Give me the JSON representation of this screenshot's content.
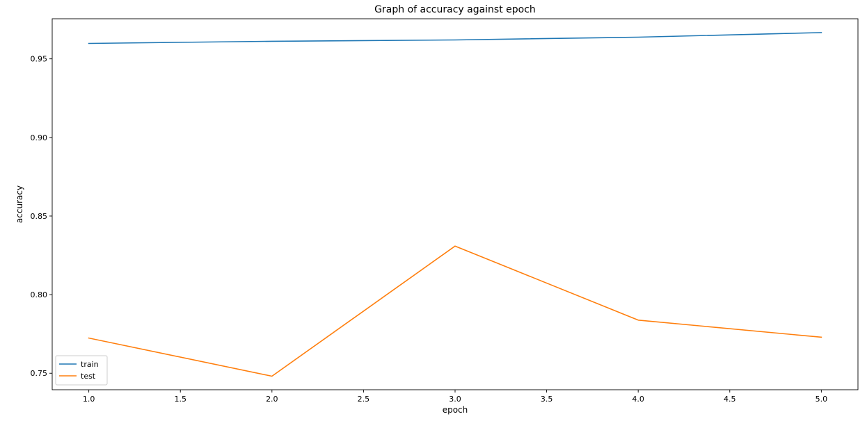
{
  "chart_data": {
    "type": "line",
    "title": "Graph of accuracy against epoch",
    "xlabel": "epoch",
    "ylabel": "accuracy",
    "xlim": [
      0.8,
      5.2
    ],
    "ylim": [
      0.7395,
      0.9755
    ],
    "xticks": [
      1.0,
      1.5,
      2.0,
      2.5,
      3.0,
      3.5,
      4.0,
      4.5,
      5.0
    ],
    "xtick_labels": [
      "1.0",
      "1.5",
      "2.0",
      "2.5",
      "3.0",
      "3.5",
      "4.0",
      "4.5",
      "5.0"
    ],
    "yticks": [
      0.75,
      0.8,
      0.85,
      0.9,
      0.95
    ],
    "ytick_labels": [
      "0.75",
      "0.80",
      "0.85",
      "0.90",
      "0.95"
    ],
    "grid": false,
    "legend_position": "lower-left",
    "x": [
      1,
      2,
      3,
      4,
      5
    ],
    "series": [
      {
        "name": "train",
        "color": "#1f77b4",
        "values": [
          0.9598,
          0.9612,
          0.962,
          0.9638,
          0.9667
        ]
      },
      {
        "name": "test",
        "color": "#ff7f0e",
        "values": [
          0.7724,
          0.7481,
          0.8309,
          0.7838,
          0.7729
        ]
      }
    ]
  }
}
